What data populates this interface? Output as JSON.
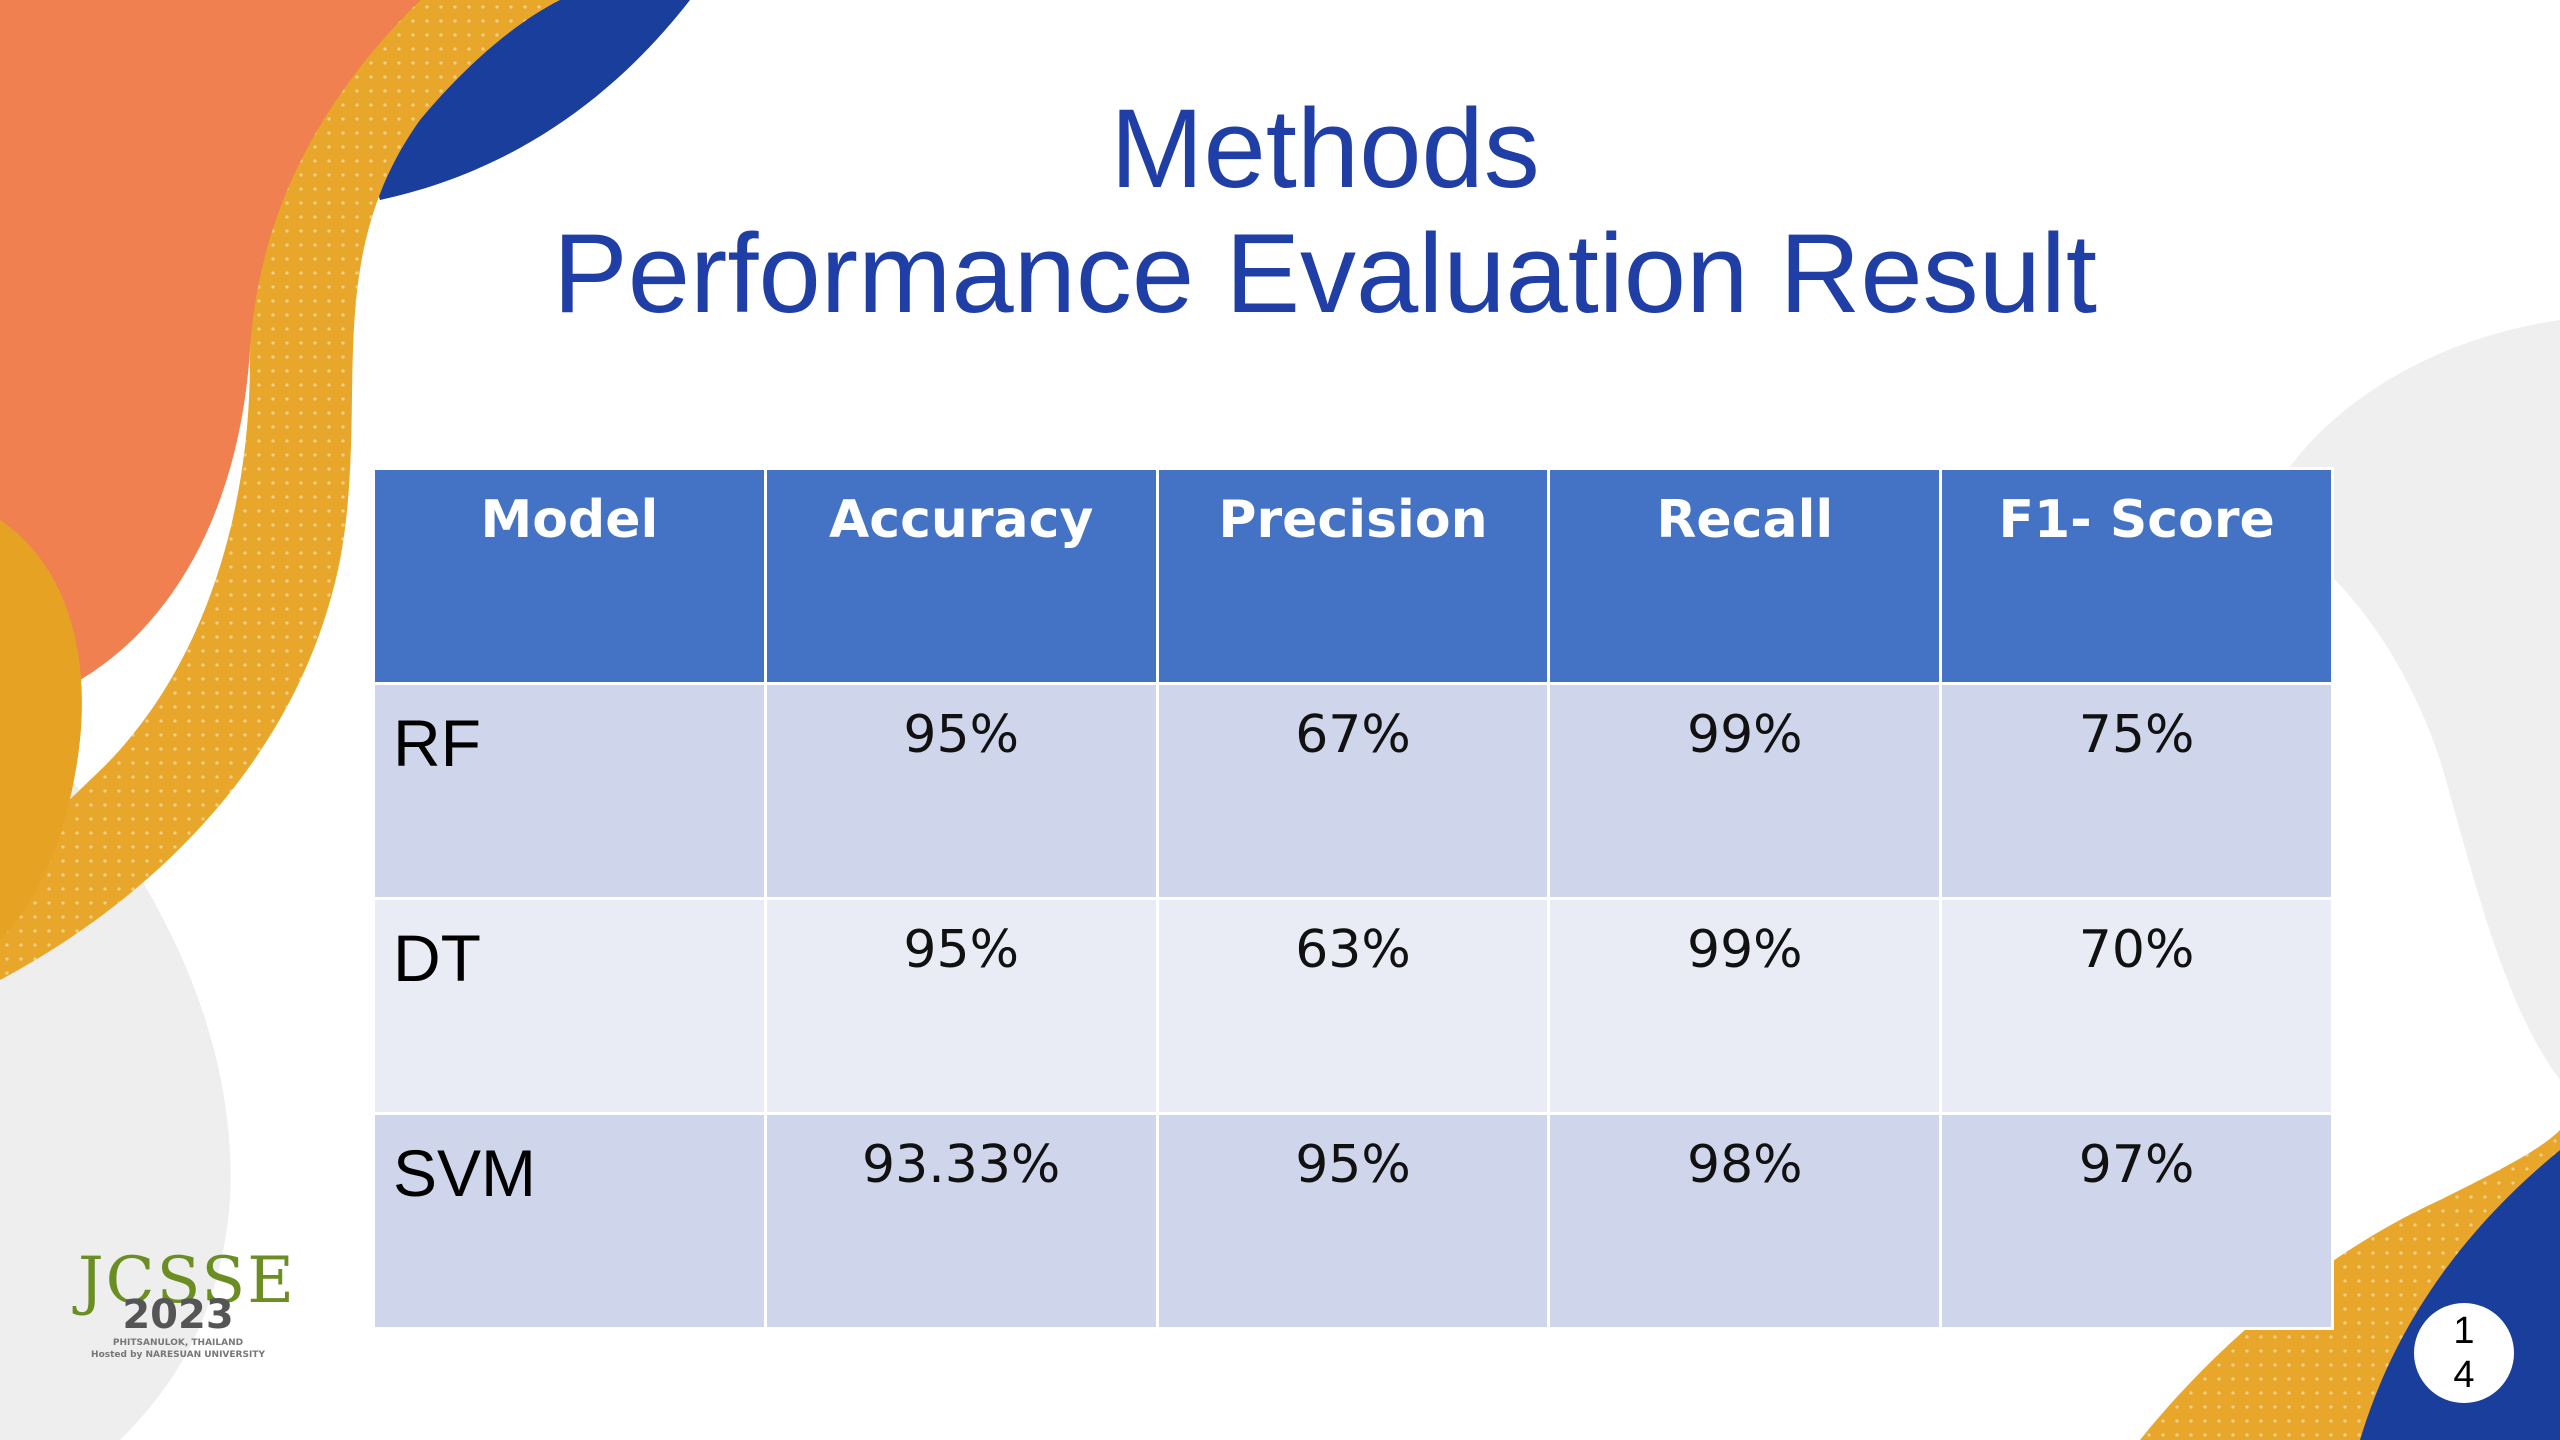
{
  "title": {
    "line1": "Methods",
    "line2": "Performance Evaluation Result"
  },
  "table": {
    "headers": [
      "Model",
      "Accuracy",
      "Precision",
      "Recall",
      "F1- Score"
    ],
    "rows": [
      [
        "RF",
        "95%",
        "67%",
        "99%",
        "75%"
      ],
      [
        "DT",
        "95%",
        "63%",
        "99%",
        "70%"
      ],
      [
        "SVM",
        "93.33%",
        "95%",
        "98%",
        "97%"
      ]
    ]
  },
  "logo": {
    "name": "JCSSE",
    "year": "2023",
    "line1": "PHITSANULOK, THAILAND",
    "line2": "Hosted by NARESUAN UNIVERSITY"
  },
  "slide_number": "14",
  "colors": {
    "title": "#1f3fa6",
    "header_bg": "#4472c4",
    "row_odd": "#cfd5ea",
    "row_even": "#e9ebf5",
    "accent_orange": "#f0804f",
    "accent_gold": "#e8a72a",
    "accent_navy": "#1a3e9c"
  }
}
